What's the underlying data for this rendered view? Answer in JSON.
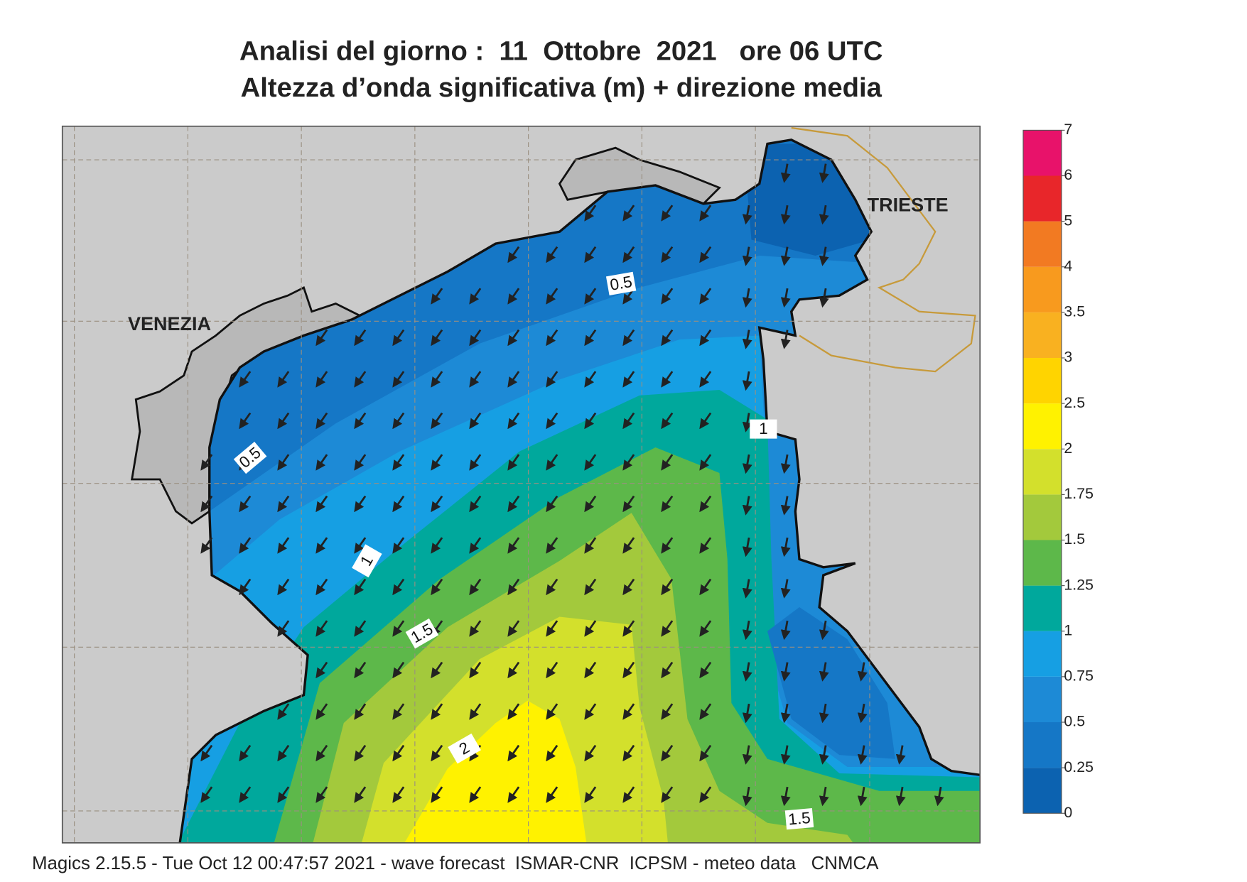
{
  "header": {
    "title": "Analisi del giorno :  11  Ottobre  2021   ore 06 UTC",
    "subtitle": "Altezza d’onda significativa (m) + direzione media"
  },
  "map": {
    "places": [
      "VENEZIA",
      "TRIESTE"
    ],
    "contour_labels": [
      "0.5",
      "0.5",
      "1",
      "1",
      "1.5",
      "2",
      "1.5"
    ]
  },
  "colorbar": {
    "levels": [
      0,
      0.25,
      0.5,
      0.75,
      1,
      1.25,
      1.5,
      1.75,
      2,
      2.5,
      3,
      3.5,
      4,
      5,
      6,
      7
    ],
    "colors": [
      "#0c62b0",
      "#1577c6",
      "#1d8ad6",
      "#169fe3",
      "#00a89c",
      "#5db84a",
      "#a3c93c",
      "#d3e02c",
      "#fff200",
      "#ffd400",
      "#f9b120",
      "#f89a1e",
      "#f27a22",
      "#e8262a",
      "#e8126a"
    ]
  },
  "footer": "Magics 2.15.5 - Tue Oct 12 00:47:57 2021 - wave forecast  ISMAR-CNR  ICPSM - meteo data   CNMCA"
}
